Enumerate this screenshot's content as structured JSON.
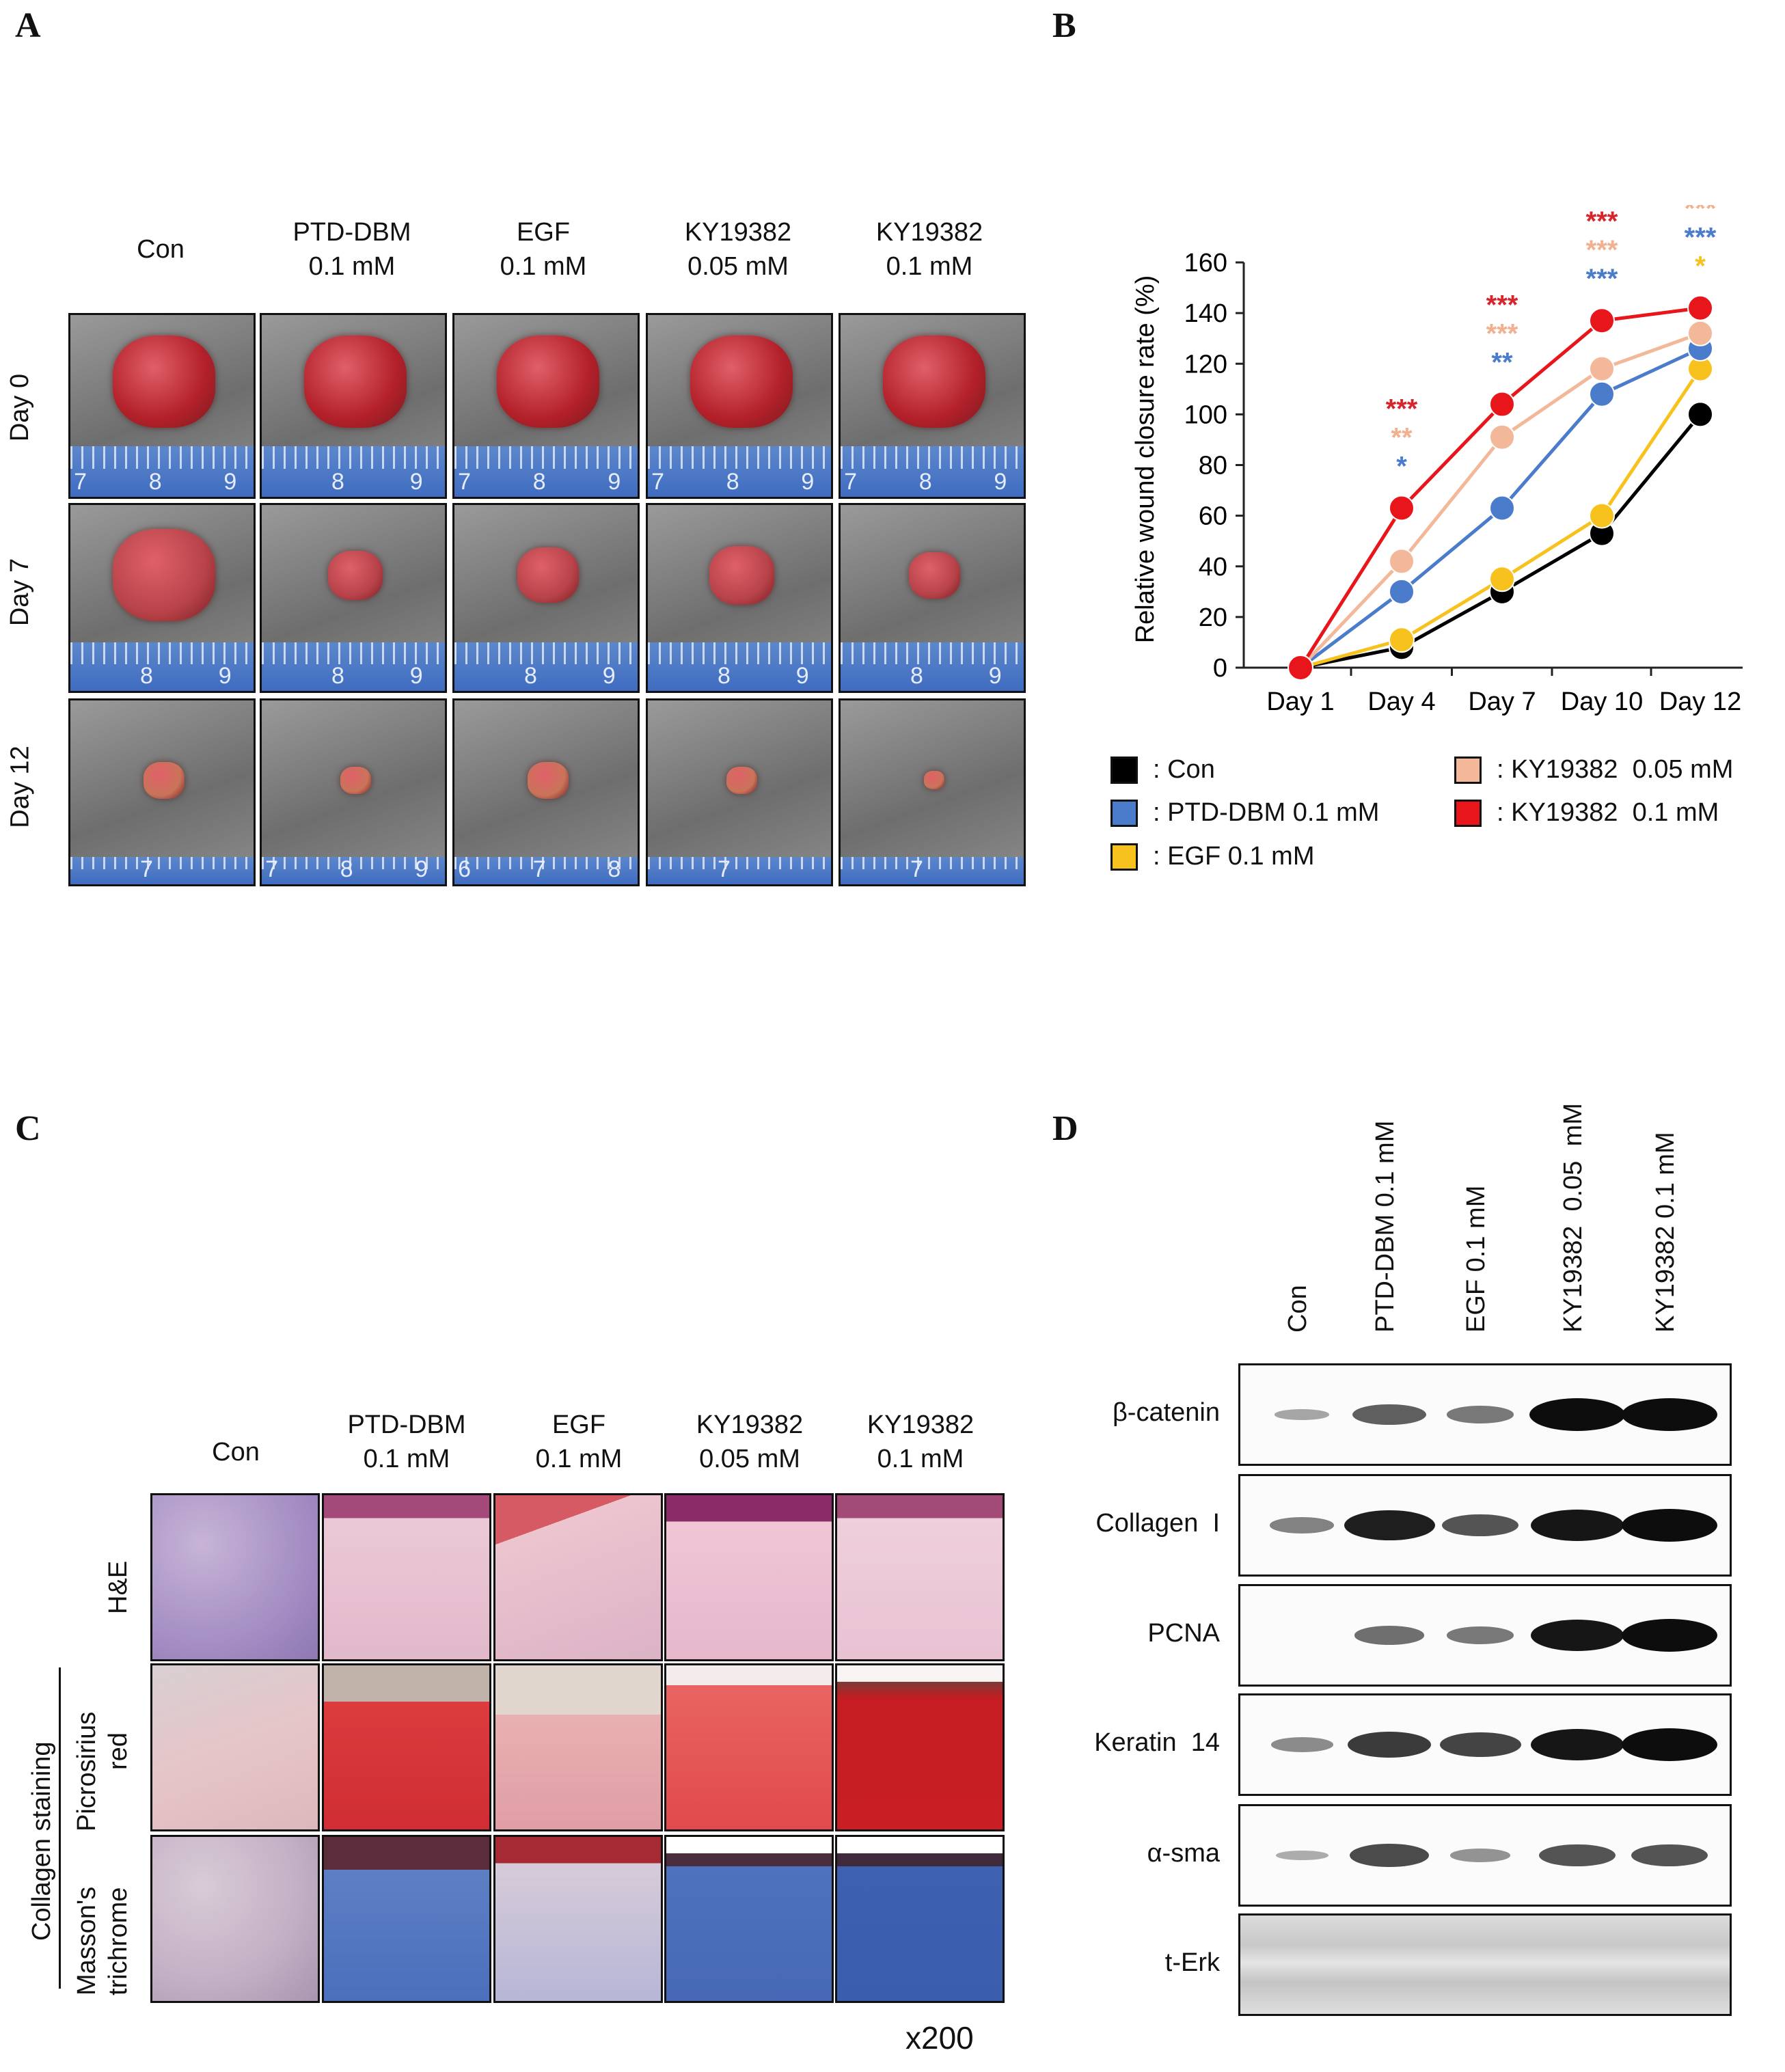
{
  "panels": {
    "a": "A",
    "b": "B",
    "c": "C",
    "d": "D"
  },
  "panel_a": {
    "columns": [
      {
        "line1": "Con",
        "line2": ""
      },
      {
        "line1": "PTD-DBM",
        "line2": "0.1 mM"
      },
      {
        "line1": "EGF",
        "line2": "0.1 mM"
      },
      {
        "line1": "KY19382",
        "line2": "0.05 mM"
      },
      {
        "line1": "KY19382",
        "line2": "0.1 mM"
      }
    ],
    "rows": [
      "Day 0",
      "Day 7",
      "Day 12"
    ],
    "ruler_numbers": {
      "day0": [
        [
          "7",
          "8",
          "9"
        ],
        [
          "8",
          "9"
        ],
        [
          "7",
          "8",
          "9"
        ],
        [
          "7",
          "8",
          "9"
        ],
        [
          "7",
          "8",
          "9"
        ]
      ],
      "day7": [
        [
          "8",
          "9"
        ],
        [
          "8",
          "9"
        ],
        [
          "8",
          "9"
        ],
        [
          "8",
          "9"
        ],
        [
          "8",
          "9"
        ]
      ],
      "day12": [
        [
          "7"
        ],
        [
          "7",
          "8",
          "9"
        ],
        [
          "6",
          "7",
          "8"
        ],
        [
          "7"
        ],
        [
          "7"
        ]
      ]
    }
  },
  "chart_data": {
    "type": "line",
    "title": "",
    "xlabel": "",
    "ylabel": "Relative wound closure rate (%)",
    "categories": [
      "Day 1",
      "Day 4",
      "Day 7",
      "Day 10",
      "Day 12"
    ],
    "ylim": [
      0,
      160
    ],
    "yticks": [
      "0",
      "20",
      "40",
      "60",
      "80",
      "100",
      "120",
      "140",
      "160"
    ],
    "series": [
      {
        "name": "Con",
        "color": "#000000",
        "values": [
          0,
          8,
          30,
          53,
          100
        ]
      },
      {
        "name": "EGF 0.1 mM",
        "color": "#f7c21d",
        "values": [
          0,
          11,
          35,
          60,
          118
        ]
      },
      {
        "name": "PTD-DBM 0.1 mM",
        "color": "#4a7ccb",
        "values": [
          0,
          30,
          63,
          108,
          126
        ]
      },
      {
        "name": "KY19382 0.05 mM",
        "color": "#f2b899",
        "values": [
          0,
          42,
          91,
          118,
          132
        ]
      },
      {
        "name": "KY19382 0.1 mM",
        "color": "#e8161b",
        "values": [
          0,
          63,
          104,
          137,
          142
        ]
      }
    ],
    "significance": [
      {
        "day": "Day 4",
        "marks": [
          {
            "text": "***",
            "color": "#d6262b"
          },
          {
            "text": "**",
            "color": "#f1b08f"
          },
          {
            "text": "*",
            "color": "#4a7ccb"
          }
        ]
      },
      {
        "day": "Day 7",
        "marks": [
          {
            "text": "***",
            "color": "#d6262b"
          },
          {
            "text": "***",
            "color": "#f1b08f"
          },
          {
            "text": "**",
            "color": "#4a7ccb"
          }
        ]
      },
      {
        "day": "Day 10",
        "marks": [
          {
            "text": "***",
            "color": "#d6262b"
          },
          {
            "text": "***",
            "color": "#f1b08f"
          },
          {
            "text": "***",
            "color": "#4a7ccb"
          }
        ]
      },
      {
        "day": "Day 12",
        "marks": [
          {
            "text": "***",
            "color": "#d6262b"
          },
          {
            "text": "***",
            "color": "#f1b08f"
          },
          {
            "text": "***",
            "color": "#4a7ccb"
          },
          {
            "text": "*",
            "color": "#f7c21d"
          }
        ]
      }
    ],
    "legend": [
      {
        "text": ": Con",
        "color": "#000000"
      },
      {
        "text": ": PTD-DBM 0.1 mM",
        "color": "#4a7ccb"
      },
      {
        "text": ": EGF 0.1 mM",
        "color": "#f7c21d"
      },
      {
        "text": ": KY19382  0.05 mM",
        "color": "#f2b899"
      },
      {
        "text": ": KY19382  0.1 mM",
        "color": "#e8161b"
      }
    ]
  },
  "panel_c": {
    "columns": [
      {
        "line1": "Con",
        "line2": ""
      },
      {
        "line1": "PTD-DBM",
        "line2": "0.1 mM"
      },
      {
        "line1": "EGF",
        "line2": "0.1 mM"
      },
      {
        "line1": "KY19382",
        "line2": "0.05 mM"
      },
      {
        "line1": "KY19382",
        "line2": "0.1 mM"
      }
    ],
    "rows": [
      {
        "line1": "H&E",
        "line2": ""
      },
      {
        "line1": "Picrosirius",
        "line2": "red"
      },
      {
        "line1": "Masson's",
        "line2": "trichrome"
      }
    ],
    "group_label": "Collagen  staining",
    "magnification": "x200"
  },
  "panel_d": {
    "lanes": [
      "Con",
      "PTD-DBM 0.1 mM",
      "EGF 0.1 mM",
      "KY19382  0.05  mM",
      "KY19382 0.1 mM"
    ],
    "proteins": [
      {
        "name": "β-catenin",
        "intensity": [
          0.15,
          0.55,
          0.4,
          1.0,
          1.0
        ]
      },
      {
        "name": "Collagen  I",
        "intensity": [
          0.35,
          0.9,
          0.6,
          0.95,
          1.0
        ]
      },
      {
        "name": "PCNA",
        "intensity": [
          0.0,
          0.45,
          0.4,
          0.95,
          1.0
        ]
      },
      {
        "name": "Keratin  14",
        "intensity": [
          0.3,
          0.75,
          0.7,
          0.95,
          1.0
        ]
      },
      {
        "name": "α-sma",
        "intensity": [
          0.1,
          0.65,
          0.25,
          0.6,
          0.6
        ]
      },
      {
        "name": "t-Erk",
        "intensity": [
          0.3,
          0.3,
          0.3,
          0.3,
          0.3
        ]
      }
    ]
  }
}
